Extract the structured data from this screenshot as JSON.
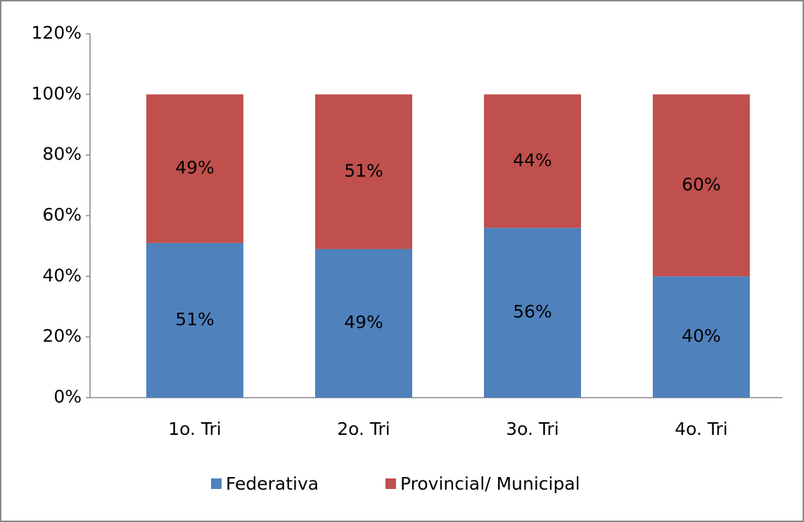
{
  "chart_data": {
    "type": "stacked_bar",
    "categories": [
      "1o. Tri",
      "2o. Tri",
      "3o. Tri",
      "4o. Tri"
    ],
    "series": [
      {
        "name": "Federativa",
        "color": "#4f81bd",
        "values": [
          51,
          49,
          56,
          40
        ],
        "value_labels": [
          "51%",
          "49%",
          "56%",
          "40%"
        ]
      },
      {
        "name": "Provincial/ Municipal",
        "color": "#c0504d",
        "values": [
          49,
          51,
          44,
          60
        ],
        "value_labels": [
          "49%",
          "51%",
          "44%",
          "60%"
        ]
      }
    ],
    "ylim": [
      0,
      120
    ],
    "yticks": [
      {
        "value": 0,
        "label": "0%"
      },
      {
        "value": 20,
        "label": "20%"
      },
      {
        "value": 40,
        "label": "40%"
      },
      {
        "value": 60,
        "label": "60%"
      },
      {
        "value": 80,
        "label": "80%"
      },
      {
        "value": 100,
        "label": "100%"
      },
      {
        "value": 120,
        "label": "120%"
      }
    ],
    "grid": false,
    "legend": "bottom"
  }
}
